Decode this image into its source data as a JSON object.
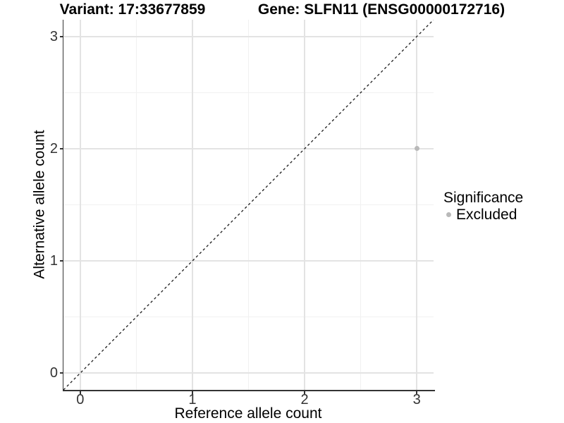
{
  "chart_data": {
    "type": "scatter",
    "titles": [
      "Variant: 17:33677859",
      "Gene: SLFN11 (ENSG00000172716)"
    ],
    "xlabel": "Reference allele count",
    "ylabel": "Alternative allele count",
    "xlim": [
      -0.15,
      3.15
    ],
    "ylim": [
      -0.15,
      3.15
    ],
    "x_ticks": [
      0,
      1,
      2,
      3
    ],
    "y_ticks": [
      0,
      1,
      2,
      3
    ],
    "minor_ticks": [
      0.5,
      1.5,
      2.5
    ],
    "grid": "major and minor gridlines, no top/right border",
    "series": [
      {
        "name": "Excluded",
        "color": "#b9b9b9",
        "points": [
          [
            3,
            2
          ]
        ]
      }
    ],
    "reference_line": {
      "slope": 1,
      "intercept": 0,
      "style": "dashed",
      "color": "#1a1a1a"
    },
    "legend": {
      "position": "right",
      "title": "Significance",
      "entries": [
        {
          "label": "Excluded",
          "color": "#b9b9b9",
          "marker": "circle"
        }
      ]
    }
  },
  "style": {
    "background": "#ffffff",
    "grid_major_color": "#e3e3e3",
    "grid_minor_color": "#f1f1f1",
    "axis_color": "#333333",
    "tick_label_color": "#333333",
    "title_color": "#000000"
  }
}
